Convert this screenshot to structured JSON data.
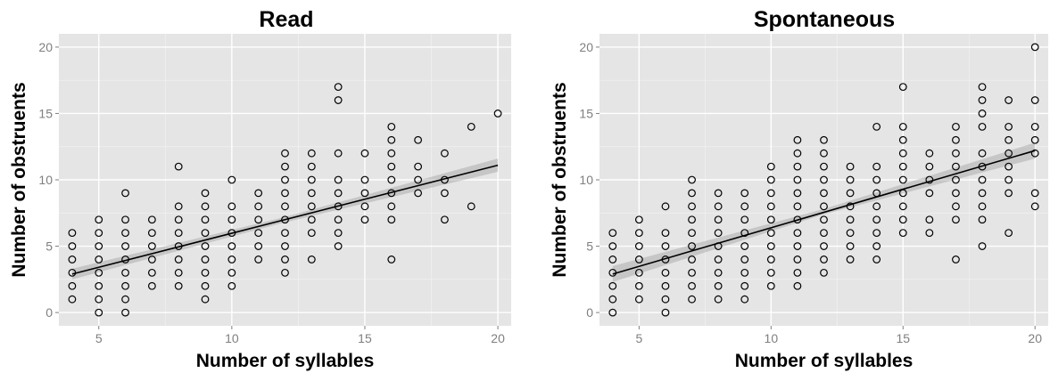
{
  "chart_data": [
    {
      "type": "scatter",
      "title": "Read",
      "xlabel": "Number of syllables",
      "ylabel": "Number of obstruents",
      "xlim": [
        3.5,
        20.5
      ],
      "ylim": [
        -1,
        21
      ],
      "xticks": [
        5,
        10,
        15,
        20
      ],
      "yticks": [
        0,
        5,
        10,
        15,
        20
      ],
      "grid": true,
      "points": [
        [
          4,
          1
        ],
        [
          4,
          2
        ],
        [
          4,
          3
        ],
        [
          4,
          4
        ],
        [
          4,
          5
        ],
        [
          4,
          6
        ],
        [
          5,
          0
        ],
        [
          5,
          1
        ],
        [
          5,
          2
        ],
        [
          5,
          3
        ],
        [
          5,
          4
        ],
        [
          5,
          5
        ],
        [
          5,
          6
        ],
        [
          5,
          7
        ],
        [
          6,
          0
        ],
        [
          6,
          1
        ],
        [
          6,
          2
        ],
        [
          6,
          3
        ],
        [
          6,
          4
        ],
        [
          6,
          5
        ],
        [
          6,
          6
        ],
        [
          6,
          7
        ],
        [
          6,
          9
        ],
        [
          7,
          2
        ],
        [
          7,
          3
        ],
        [
          7,
          4
        ],
        [
          7,
          5
        ],
        [
          7,
          6
        ],
        [
          7,
          7
        ],
        [
          8,
          2
        ],
        [
          8,
          3
        ],
        [
          8,
          4
        ],
        [
          8,
          5
        ],
        [
          8,
          6
        ],
        [
          8,
          7
        ],
        [
          8,
          8
        ],
        [
          8,
          11
        ],
        [
          9,
          1
        ],
        [
          9,
          2
        ],
        [
          9,
          3
        ],
        [
          9,
          4
        ],
        [
          9,
          5
        ],
        [
          9,
          6
        ],
        [
          9,
          7
        ],
        [
          9,
          8
        ],
        [
          9,
          9
        ],
        [
          10,
          2
        ],
        [
          10,
          3
        ],
        [
          10,
          4
        ],
        [
          10,
          5
        ],
        [
          10,
          6
        ],
        [
          10,
          7
        ],
        [
          10,
          8
        ],
        [
          10,
          10
        ],
        [
          11,
          4
        ],
        [
          11,
          5
        ],
        [
          11,
          6
        ],
        [
          11,
          7
        ],
        [
          11,
          8
        ],
        [
          11,
          9
        ],
        [
          12,
          3
        ],
        [
          12,
          4
        ],
        [
          12,
          5
        ],
        [
          12,
          6
        ],
        [
          12,
          7
        ],
        [
          12,
          8
        ],
        [
          12,
          9
        ],
        [
          12,
          10
        ],
        [
          12,
          11
        ],
        [
          12,
          12
        ],
        [
          13,
          4
        ],
        [
          13,
          6
        ],
        [
          13,
          7
        ],
        [
          13,
          8
        ],
        [
          13,
          9
        ],
        [
          13,
          10
        ],
        [
          13,
          11
        ],
        [
          13,
          12
        ],
        [
          14,
          5
        ],
        [
          14,
          6
        ],
        [
          14,
          7
        ],
        [
          14,
          8
        ],
        [
          14,
          9
        ],
        [
          14,
          10
        ],
        [
          14,
          12
        ],
        [
          14,
          16
        ],
        [
          14,
          17
        ],
        [
          15,
          7
        ],
        [
          15,
          8
        ],
        [
          15,
          9
        ],
        [
          15,
          10
        ],
        [
          15,
          12
        ],
        [
          16,
          4
        ],
        [
          16,
          7
        ],
        [
          16,
          8
        ],
        [
          16,
          9
        ],
        [
          16,
          10
        ],
        [
          16,
          11
        ],
        [
          16,
          12
        ],
        [
          16,
          13
        ],
        [
          16,
          14
        ],
        [
          17,
          9
        ],
        [
          17,
          10
        ],
        [
          17,
          11
        ],
        [
          17,
          13
        ],
        [
          18,
          7
        ],
        [
          18,
          9
        ],
        [
          18,
          10
        ],
        [
          18,
          12
        ],
        [
          19,
          8
        ],
        [
          19,
          14
        ],
        [
          20,
          15
        ]
      ],
      "fit": {
        "x": [
          4,
          20
        ],
        "y": [
          2.9,
          11.1
        ]
      },
      "confidence_band": {
        "x": [
          4,
          12,
          20
        ],
        "lower": [
          2.5,
          6.8,
          10.6
        ],
        "upper": [
          3.3,
          7.2,
          11.6
        ]
      }
    },
    {
      "type": "scatter",
      "title": "Spontaneous",
      "xlabel": "Number of syllables",
      "ylabel": "Number of obstruents",
      "xlim": [
        3.5,
        20.5
      ],
      "ylim": [
        -1,
        21
      ],
      "xticks": [
        5,
        10,
        15,
        20
      ],
      "yticks": [
        0,
        5,
        10,
        15,
        20
      ],
      "grid": true,
      "points": [
        [
          4,
          0
        ],
        [
          4,
          1
        ],
        [
          4,
          2
        ],
        [
          4,
          3
        ],
        [
          4,
          4
        ],
        [
          4,
          5
        ],
        [
          4,
          6
        ],
        [
          5,
          1
        ],
        [
          5,
          2
        ],
        [
          5,
          3
        ],
        [
          5,
          4
        ],
        [
          5,
          5
        ],
        [
          5,
          6
        ],
        [
          5,
          7
        ],
        [
          6,
          0
        ],
        [
          6,
          1
        ],
        [
          6,
          2
        ],
        [
          6,
          3
        ],
        [
          6,
          4
        ],
        [
          6,
          5
        ],
        [
          6,
          6
        ],
        [
          6,
          8
        ],
        [
          7,
          1
        ],
        [
          7,
          2
        ],
        [
          7,
          3
        ],
        [
          7,
          4
        ],
        [
          7,
          5
        ],
        [
          7,
          6
        ],
        [
          7,
          7
        ],
        [
          7,
          8
        ],
        [
          7,
          9
        ],
        [
          7,
          10
        ],
        [
          8,
          1
        ],
        [
          8,
          2
        ],
        [
          8,
          3
        ],
        [
          8,
          4
        ],
        [
          8,
          5
        ],
        [
          8,
          6
        ],
        [
          8,
          7
        ],
        [
          8,
          8
        ],
        [
          8,
          9
        ],
        [
          9,
          1
        ],
        [
          9,
          2
        ],
        [
          9,
          3
        ],
        [
          9,
          4
        ],
        [
          9,
          5
        ],
        [
          9,
          6
        ],
        [
          9,
          7
        ],
        [
          9,
          8
        ],
        [
          9,
          9
        ],
        [
          10,
          2
        ],
        [
          10,
          3
        ],
        [
          10,
          4
        ],
        [
          10,
          5
        ],
        [
          10,
          6
        ],
        [
          10,
          7
        ],
        [
          10,
          8
        ],
        [
          10,
          9
        ],
        [
          10,
          10
        ],
        [
          10,
          11
        ],
        [
          11,
          2
        ],
        [
          11,
          3
        ],
        [
          11,
          4
        ],
        [
          11,
          5
        ],
        [
          11,
          6
        ],
        [
          11,
          7
        ],
        [
          11,
          8
        ],
        [
          11,
          9
        ],
        [
          11,
          10
        ],
        [
          11,
          11
        ],
        [
          11,
          12
        ],
        [
          11,
          13
        ],
        [
          12,
          3
        ],
        [
          12,
          4
        ],
        [
          12,
          5
        ],
        [
          12,
          6
        ],
        [
          12,
          7
        ],
        [
          12,
          8
        ],
        [
          12,
          9
        ],
        [
          12,
          10
        ],
        [
          12,
          11
        ],
        [
          12,
          12
        ],
        [
          12,
          13
        ],
        [
          13,
          4
        ],
        [
          13,
          5
        ],
        [
          13,
          6
        ],
        [
          13,
          7
        ],
        [
          13,
          8
        ],
        [
          13,
          9
        ],
        [
          13,
          10
        ],
        [
          13,
          11
        ],
        [
          14,
          4
        ],
        [
          14,
          5
        ],
        [
          14,
          6
        ],
        [
          14,
          7
        ],
        [
          14,
          8
        ],
        [
          14,
          9
        ],
        [
          14,
          10
        ],
        [
          14,
          11
        ],
        [
          14,
          14
        ],
        [
          15,
          6
        ],
        [
          15,
          7
        ],
        [
          15,
          8
        ],
        [
          15,
          9
        ],
        [
          15,
          10
        ],
        [
          15,
          11
        ],
        [
          15,
          12
        ],
        [
          15,
          13
        ],
        [
          15,
          14
        ],
        [
          15,
          17
        ],
        [
          16,
          6
        ],
        [
          16,
          7
        ],
        [
          16,
          9
        ],
        [
          16,
          10
        ],
        [
          16,
          11
        ],
        [
          16,
          12
        ],
        [
          17,
          4
        ],
        [
          17,
          7
        ],
        [
          17,
          8
        ],
        [
          17,
          9
        ],
        [
          17,
          10
        ],
        [
          17,
          11
        ],
        [
          17,
          12
        ],
        [
          17,
          13
        ],
        [
          17,
          14
        ],
        [
          18,
          5
        ],
        [
          18,
          7
        ],
        [
          18,
          8
        ],
        [
          18,
          9
        ],
        [
          18,
          10
        ],
        [
          18,
          11
        ],
        [
          18,
          12
        ],
        [
          18,
          14
        ],
        [
          18,
          15
        ],
        [
          18,
          16
        ],
        [
          18,
          17
        ],
        [
          19,
          6
        ],
        [
          19,
          9
        ],
        [
          19,
          10
        ],
        [
          19,
          11
        ],
        [
          19,
          12
        ],
        [
          19,
          13
        ],
        [
          19,
          14
        ],
        [
          19,
          16
        ],
        [
          20,
          8
        ],
        [
          20,
          9
        ],
        [
          20,
          12
        ],
        [
          20,
          13
        ],
        [
          20,
          14
        ],
        [
          20,
          16
        ],
        [
          20,
          20
        ]
      ],
      "fit": {
        "x": [
          4,
          20
        ],
        "y": [
          2.9,
          12.2
        ]
      },
      "confidence_band": {
        "x": [
          4,
          12,
          20
        ],
        "lower": [
          2.3,
          7.4,
          11.6
        ],
        "upper": [
          3.5,
          7.8,
          12.8
        ]
      }
    }
  ]
}
